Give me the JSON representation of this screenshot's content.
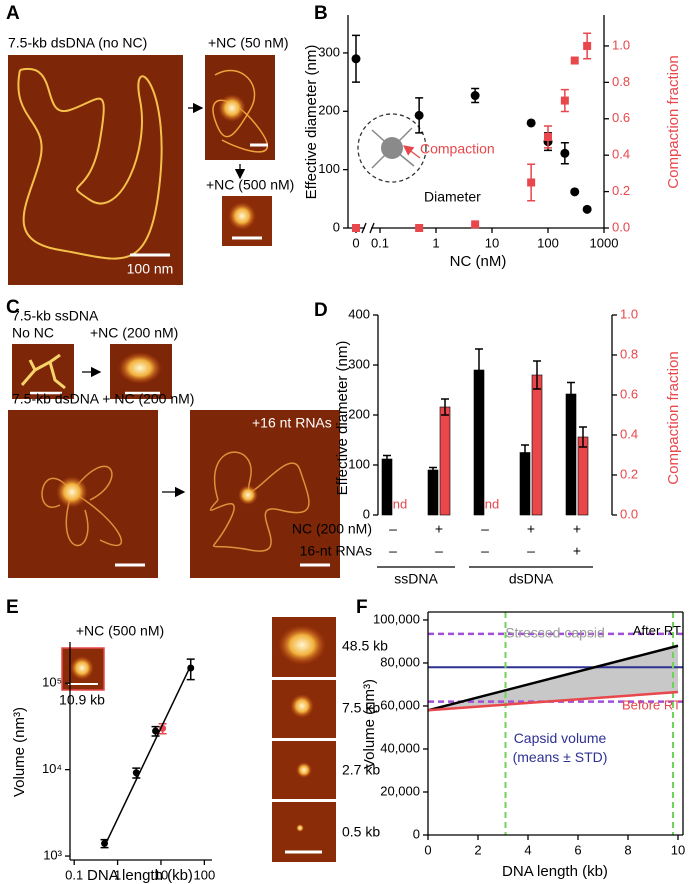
{
  "panels": {
    "A": {
      "label": "A",
      "title": "7.5-kb dsDNA (no NC)",
      "scale_bar": "100 nm",
      "low": "+NC (50 nM)",
      "high": "+NC (500 nM)"
    },
    "C": {
      "label": "C",
      "ss_title": "7.5-kb ssDNA",
      "ss_before": "No NC",
      "ss_after": "+NC (200 nM)",
      "ds_title": "7.5-kb dsDNA + NC (200 nM)",
      "ds_after": "+16 nt RNAs"
    },
    "E": {
      "title": "+NC (500 nM)",
      "inset": "10.9 kb",
      "images": [
        "48.5 kb",
        "7.5 kb",
        "2.7 kb",
        "0.5 kb"
      ]
    }
  },
  "chart_data": [
    {
      "panel": "B",
      "type": "scatter",
      "xlabel": "NC (nM)",
      "ylabel": "Effective diameter (nm)",
      "y2label": "Compaction fraction",
      "annotations": [
        "Compaction",
        "Diameter"
      ],
      "x": [
        0,
        0.5,
        5,
        50,
        100,
        200,
        300,
        500
      ],
      "xscale": "log",
      "axis_break": true,
      "xlim": [
        0.1,
        1000
      ],
      "xticks": [
        0,
        0.1,
        1,
        10,
        100,
        1000
      ],
      "ylim": [
        0,
        365
      ],
      "yticks": [
        0,
        100,
        200,
        300
      ],
      "y2lim": [
        0,
        1.17
      ],
      "y2ticks": [
        {
          "value": 0,
          "label": "0.0"
        },
        {
          "value": 0.2,
          "label": "0.2"
        },
        {
          "value": 0.4,
          "label": "0.4"
        },
        {
          "value": 0.6,
          "label": "0.6"
        },
        {
          "value": 0.8,
          "label": "0.8"
        },
        {
          "value": 1,
          "label": "1.0"
        }
      ],
      "series": [
        {
          "color": "#000000",
          "marker": "circle",
          "values": [
            290,
            193,
            227,
            180,
            148,
            128,
            62,
            32
          ],
          "errors": [
            40,
            30,
            12,
            null,
            15,
            18,
            null,
            null
          ]
        },
        {
          "color": "#e8474c",
          "marker": "square",
          "axis": "y2",
          "values": [
            0,
            0,
            0.02,
            0.25,
            0.5,
            0.7,
            0.92,
            1.0
          ],
          "errors": [
            null,
            null,
            null,
            0.1,
            0.06,
            0.06,
            null,
            0.07
          ]
        }
      ]
    },
    {
      "panel": "D",
      "type": "bar",
      "ylabel": "Effective diameter (nm)",
      "y2label": "Compaction fraction",
      "ylim": [
        0,
        400
      ],
      "yticks": [
        0,
        100,
        200,
        300,
        400
      ],
      "y2lim": [
        0,
        1.0
      ],
      "y2ticks": [
        {
          "value": 0,
          "label": "0.0"
        },
        {
          "value": 0.2,
          "label": "0.2"
        },
        {
          "value": 0.4,
          "label": "0.4"
        },
        {
          "value": 0.6,
          "label": "0.6"
        },
        {
          "value": 0.8,
          "label": "0.8"
        },
        {
          "value": 1,
          "label": "1.0"
        }
      ],
      "series": [
        {
          "color": "#000000",
          "error_color": "#000000",
          "values": [
            112,
            90,
            290,
            125,
            242
          ],
          "errors": [
            7,
            5,
            42,
            15,
            23
          ]
        },
        {
          "color": "#e8474c",
          "error_color": "#000000",
          "axis": "y2",
          "values": [
            null,
            0.54,
            null,
            0.7,
            0.39
          ],
          "errors": [
            null,
            0.04,
            null,
            0.07,
            0.05
          ],
          "value_labels": [
            "nd",
            null,
            "nd",
            null,
            null
          ]
        }
      ],
      "rows": [
        {
          "label": "NC (200 nM)",
          "values": [
            "–",
            "+",
            "–",
            "+",
            "+"
          ]
        },
        {
          "label": "16-nt RNAs",
          "values": [
            "–",
            "–",
            "–",
            "–",
            "+"
          ]
        }
      ],
      "groups": [
        "ssDNA",
        "dsDNA"
      ]
    },
    {
      "panel": "E",
      "type": "scatter",
      "xlabel": "DNA length (kb)",
      "ylabel": "Volume (nm³)",
      "xscale": "log",
      "yscale": "log",
      "xlim": [
        0.08,
        150
      ],
      "xticks": [
        0.1,
        1,
        10,
        100
      ],
      "ylim": [
        900,
        300000
      ],
      "yticks": [
        {
          "value": 1000,
          "label": "10³"
        },
        {
          "value": 10000,
          "label": "10⁴"
        },
        {
          "value": 100000,
          "label": "10⁵"
        }
      ],
      "series": [
        {
          "color": "#000000",
          "marker": "circle",
          "x": [
            0.5,
            2.7,
            7.5,
            48.5
          ],
          "values": [
            1400,
            9200,
            28000,
            150000
          ],
          "errors": [
            150,
            1200,
            3500,
            40000
          ]
        },
        {
          "color": "#e8474c",
          "marker": "circle",
          "x": [
            10.9
          ],
          "values": [
            30000
          ],
          "errors": [
            4000
          ]
        },
        {
          "color": "#000000",
          "type": "line",
          "x": [
            0.5,
            48.5
          ],
          "values": [
            1300,
            160000
          ]
        }
      ]
    },
    {
      "panel": "F",
      "type": "line",
      "xlabel": "DNA length (kb)",
      "ylabel": "Volume (nm³)",
      "x": [
        0,
        10
      ],
      "xlim": [
        0,
        10.2
      ],
      "xticks": [
        0,
        2,
        4,
        6,
        8,
        10
      ],
      "ylim": [
        0,
        103700
      ],
      "yticks": [
        0,
        {
          "value": 20000,
          "label": "20,000"
        },
        {
          "value": 40000,
          "label": "40,000"
        },
        {
          "value": 60000,
          "label": "60,000"
        },
        {
          "value": 80000,
          "label": "80,000"
        },
        {
          "value": 100000,
          "label": "100,000"
        }
      ],
      "series": [
        {
          "name": "After RT",
          "color": "#000000",
          "values": [
            58000,
            88000
          ]
        },
        {
          "name": "Before RT",
          "color": "#e8474c",
          "values": [
            58000,
            66500
          ]
        }
      ],
      "fill": {
        "label": "Stressed capsid",
        "color": "#c8c8c8"
      },
      "hline": {
        "value": 78000,
        "color": "#2e3192",
        "label": "Capsid volume",
        "sublabel": "(means ± STD)"
      },
      "std_lines": {
        "values": [
          62000,
          93500
        ],
        "color": "#a24fd6"
      },
      "vlines": {
        "values": [
          3.1,
          9.8
        ],
        "color": "#6fd35a"
      }
    }
  ]
}
